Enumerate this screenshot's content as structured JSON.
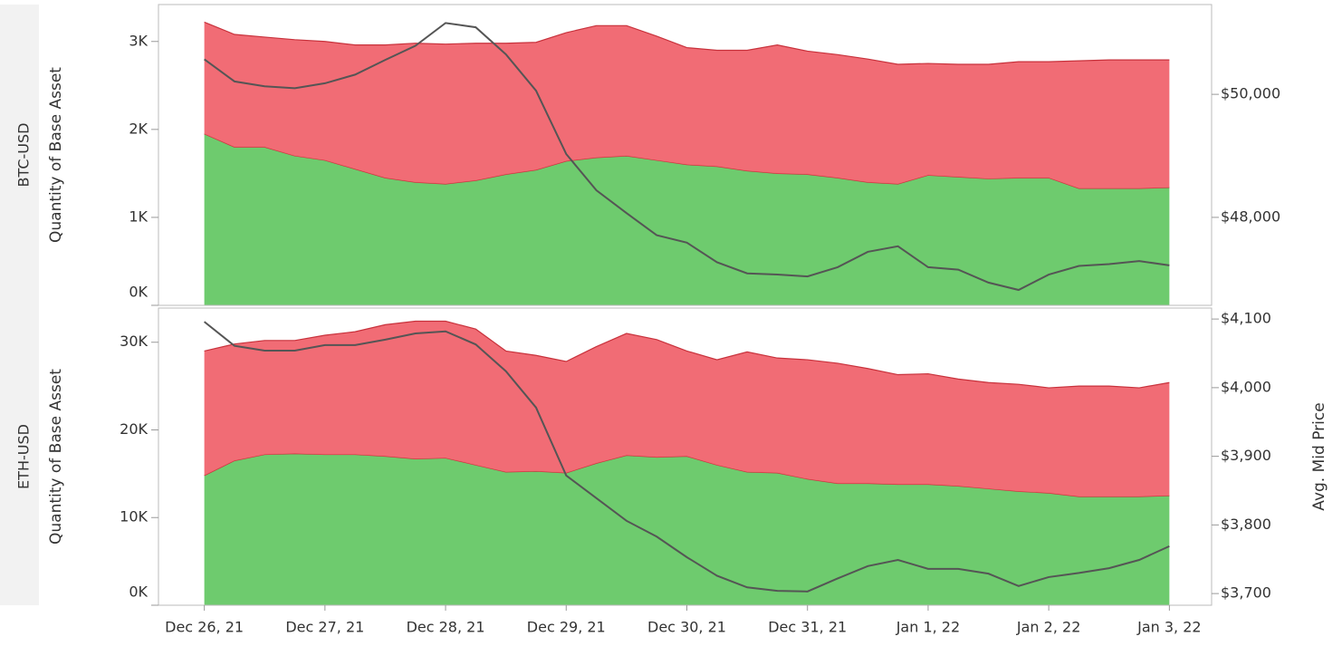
{
  "chart_data": [
    {
      "type": "area",
      "title": "BTC-USD",
      "ylabel": "Quantity of Base Asset",
      "x": [
        0,
        0.25,
        0.5,
        0.75,
        1,
        1.25,
        1.5,
        1.75,
        2,
        2.25,
        2.5,
        2.75,
        3,
        3.25,
        3.5,
        3.75,
        4,
        4.25,
        4.5,
        4.75,
        5,
        5.25,
        5.5,
        5.75,
        6,
        6.25,
        6.5,
        6.75,
        7,
        7.25,
        7.5,
        7.75,
        8
      ],
      "xlim": [
        -0.38,
        8.35
      ],
      "ylim": [
        0,
        3420
      ],
      "yticks": [
        {
          "value": 0,
          "label": "0K"
        },
        {
          "value": 1000,
          "label": "1K"
        },
        {
          "value": 2000,
          "label": "2K"
        },
        {
          "value": 3000,
          "label": "3K"
        }
      ],
      "y2lim": [
        46570,
        51460
      ],
      "y2ticks": [
        {
          "value": 48000,
          "label": "$48,000"
        },
        {
          "value": 50000,
          "label": "$50,000"
        }
      ],
      "series": [
        {
          "color": "#66c866",
          "values": [
            1950,
            1800,
            1800,
            1700,
            1650,
            1550,
            1450,
            1400,
            1380,
            1420,
            1490,
            1540,
            1640,
            1680,
            1700,
            1650,
            1600,
            1580,
            1530,
            1500,
            1490,
            1450,
            1400,
            1380,
            1480,
            1460,
            1440,
            1450,
            1450,
            1330,
            1330,
            1330,
            1340
          ]
        },
        {
          "color": "#f0646e",
          "values": [
            1270,
            1280,
            1250,
            1320,
            1350,
            1410,
            1510,
            1580,
            1590,
            1560,
            1490,
            1450,
            1460,
            1500,
            1480,
            1410,
            1330,
            1320,
            1370,
            1460,
            1400,
            1400,
            1400,
            1360,
            1270,
            1280,
            1300,
            1320,
            1320,
            1450,
            1460,
            1460,
            1450
          ]
        },
        {
          "color": "#555555",
          "axis": "y2",
          "values": [
            50570,
            50210,
            50130,
            50100,
            50180,
            50320,
            50560,
            50790,
            51160,
            51090,
            50650,
            50060,
            49030,
            48440,
            48070,
            47710,
            47590,
            47270,
            47090,
            47070,
            47040,
            47190,
            47440,
            47530,
            47190,
            47150,
            46940,
            46820,
            47070,
            47210,
            47240,
            47290,
            47220
          ]
        }
      ]
    },
    {
      "type": "area",
      "title": "ETH-USD",
      "ylabel": "Quantity of Base Asset",
      "y2label": "Avg. Mid Price",
      "x": [
        0,
        0.25,
        0.5,
        0.75,
        1,
        1.25,
        1.5,
        1.75,
        2,
        2.25,
        2.5,
        2.75,
        3,
        3.25,
        3.5,
        3.75,
        4,
        4.25,
        4.5,
        4.75,
        5,
        5.25,
        5.5,
        5.75,
        6,
        6.25,
        6.5,
        6.75,
        7,
        7.25,
        7.5,
        7.75,
        8
      ],
      "xlim": [
        -0.38,
        8.35
      ],
      "xticks": [
        {
          "value": 0,
          "label": "Dec 26, 21"
        },
        {
          "value": 1,
          "label": "Dec 27, 21"
        },
        {
          "value": 2,
          "label": "Dec 28, 21"
        },
        {
          "value": 3,
          "label": "Dec 29, 21"
        },
        {
          "value": 4,
          "label": "Dec 30, 21"
        },
        {
          "value": 5,
          "label": "Dec 31, 21"
        },
        {
          "value": 6,
          "label": "Jan 1, 22"
        },
        {
          "value": 7,
          "label": "Jan 2, 22"
        },
        {
          "value": 8,
          "label": "Jan 3, 22"
        }
      ],
      "ylim": [
        0,
        33900
      ],
      "yticks": [
        {
          "value": 0,
          "label": "0K"
        },
        {
          "value": 10000,
          "label": "10K"
        },
        {
          "value": 20000,
          "label": "20K"
        },
        {
          "value": 30000,
          "label": "30K"
        }
      ],
      "y2lim": [
        3683,
        4116
      ],
      "y2ticks": [
        {
          "value": 3700,
          "label": "$3,700"
        },
        {
          "value": 3800,
          "label": "$3,800"
        },
        {
          "value": 3900,
          "label": "$3,900"
        },
        {
          "value": 4000,
          "label": "$4,000"
        },
        {
          "value": 4100,
          "label": "$4,100"
        }
      ],
      "series": [
        {
          "color": "#66c866",
          "values": [
            14800,
            16500,
            17200,
            17300,
            17200,
            17200,
            17000,
            16700,
            16800,
            16000,
            15200,
            15300,
            15100,
            16200,
            17100,
            16900,
            17000,
            16000,
            15200,
            15100,
            14400,
            13900,
            13900,
            13800,
            13800,
            13600,
            13300,
            13000,
            12800,
            12400,
            12400,
            12400,
            12500
          ]
        },
        {
          "color": "#f0646e",
          "values": [
            14200,
            13300,
            13000,
            12900,
            13600,
            14000,
            15000,
            15700,
            15600,
            15500,
            13800,
            13200,
            12700,
            13300,
            13900,
            13400,
            12000,
            12000,
            13700,
            13100,
            13600,
            13700,
            13100,
            12500,
            12600,
            12200,
            12100,
            12200,
            12000,
            12600,
            12600,
            12400,
            12900
          ]
        },
        {
          "color": "#555555",
          "axis": "y2",
          "values": [
            4096,
            4061,
            4054,
            4054,
            4062,
            4062,
            4070,
            4079,
            4082,
            4063,
            4024,
            3971,
            3872,
            3839,
            3806,
            3783,
            3753,
            3726,
            3709,
            3704,
            3703,
            3722,
            3740,
            3749,
            3736,
            3736,
            3729,
            3711,
            3724,
            3730,
            3737,
            3749,
            3769
          ]
        }
      ]
    }
  ]
}
